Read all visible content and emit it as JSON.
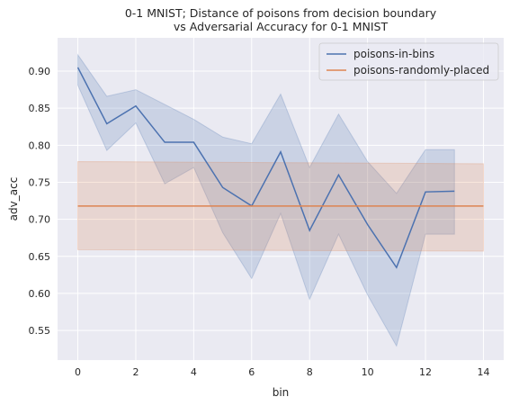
{
  "chart_data": {
    "type": "line",
    "title": "0-1 MNIST; Distance of poisons from decision boundary",
    "subtitle": "vs Adversarial Accuracy for 0-1 MNIST",
    "xlabel": "bin",
    "ylabel": "adv_acc",
    "xlim": [
      -0.7,
      14.7
    ],
    "ylim": [
      0.51,
      0.945
    ],
    "xticks": [
      0,
      2,
      4,
      6,
      8,
      10,
      12,
      14
    ],
    "yticks": [
      0.55,
      0.6,
      0.65,
      0.7,
      0.75,
      0.8,
      0.85,
      0.9
    ],
    "grid": true,
    "legend_position": "top-right",
    "series": [
      {
        "name": "poisons-in-bins",
        "color": "#4c72b0",
        "x": [
          0,
          1,
          2,
          3,
          4,
          5,
          6,
          7,
          8,
          9,
          10,
          11,
          12,
          13
        ],
        "values": [
          0.905,
          0.829,
          0.853,
          0.804,
          0.804,
          0.743,
          0.718,
          0.791,
          0.685,
          0.76,
          0.693,
          0.635,
          0.737,
          0.738
        ],
        "ci_lower": [
          0.881,
          0.793,
          0.83,
          0.748,
          0.77,
          0.682,
          0.62,
          0.708,
          0.592,
          0.68,
          0.598,
          0.529,
          0.68,
          0.68
        ],
        "ci_upper": [
          0.922,
          0.866,
          0.875,
          0.855,
          0.835,
          0.811,
          0.802,
          0.869,
          0.77,
          0.842,
          0.778,
          0.735,
          0.794,
          0.794
        ]
      },
      {
        "name": "poisons-randomly-placed",
        "color": "#dd8452",
        "x": [
          0,
          14
        ],
        "values": [
          0.718,
          0.718
        ],
        "ci_lower": [
          0.659,
          0.657
        ],
        "ci_upper": [
          0.778,
          0.775
        ]
      }
    ]
  }
}
